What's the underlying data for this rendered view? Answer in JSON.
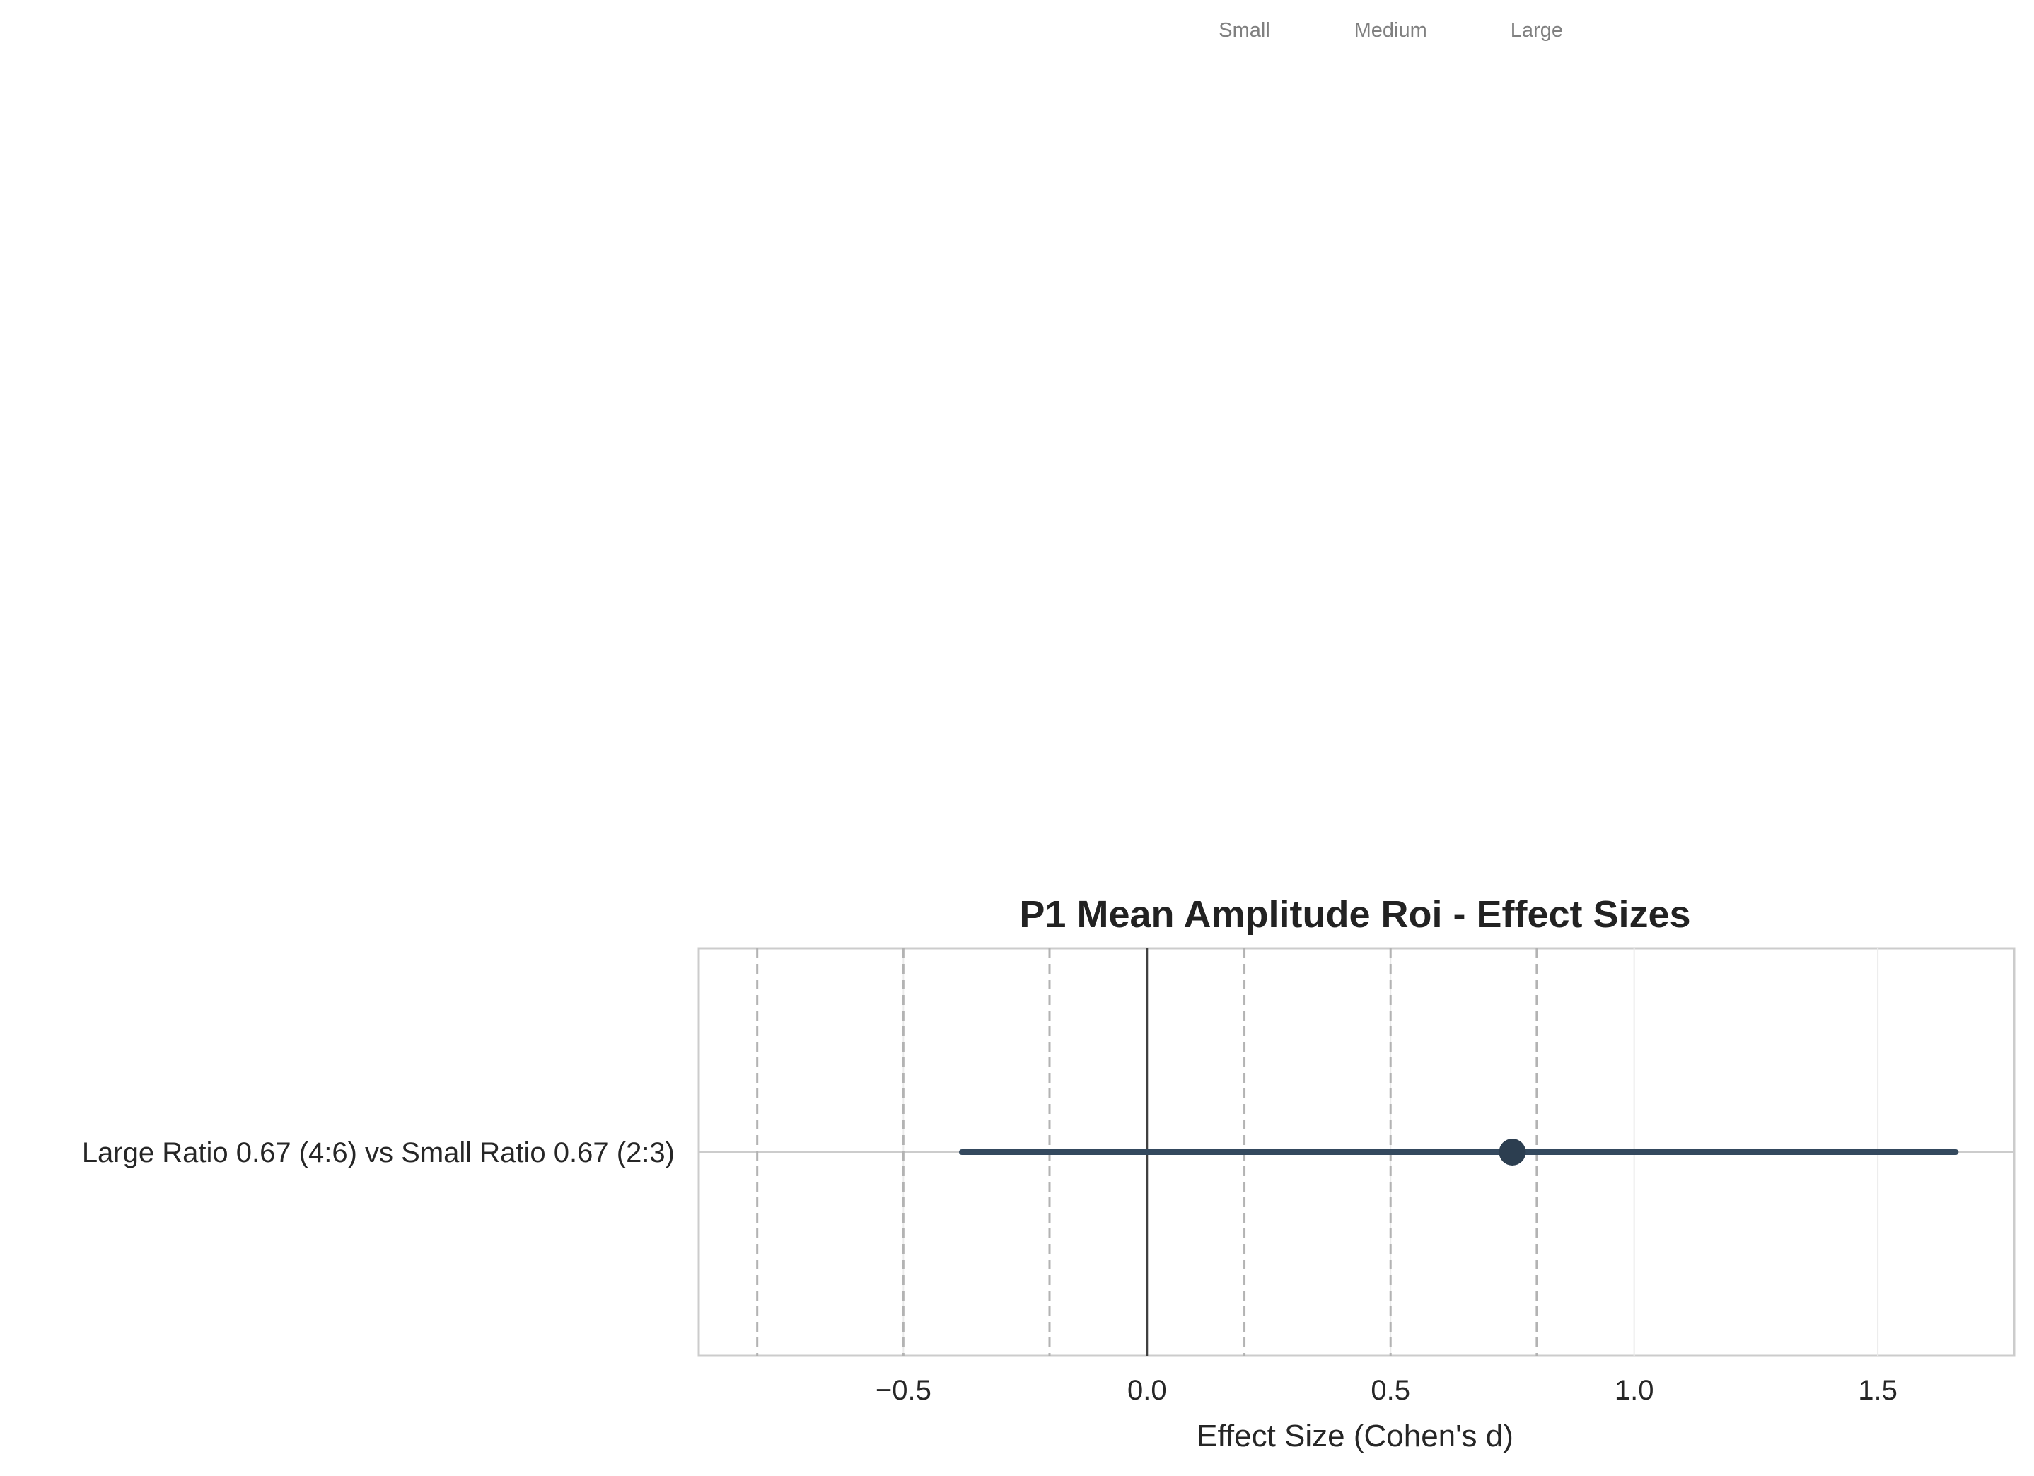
{
  "chart_data": {
    "type": "forest",
    "title": "P1 Mean Amplitude Roi - Effect Sizes",
    "xlabel": "Effect Size (Cohen's d)",
    "xlim": [
      -0.92,
      1.78
    ],
    "x_ticks": [
      -0.5,
      0.0,
      0.5,
      1.0,
      1.5
    ],
    "x_tick_labels": [
      "−0.5",
      "0.0",
      "0.5",
      "1.0",
      "1.5"
    ],
    "grid": true,
    "reference_line": 0.0,
    "threshold_lines": [
      -0.8,
      -0.5,
      -0.2,
      0.2,
      0.5,
      0.8
    ],
    "threshold_labels": [
      {
        "value": 0.2,
        "label": "Small"
      },
      {
        "value": 0.5,
        "label": "Medium"
      },
      {
        "value": 0.8,
        "label": "Large"
      }
    ],
    "rows": [
      {
        "label": "Large Ratio 0.67 (4:6) vs Small Ratio 0.67 (2:3)",
        "estimate": 0.75,
        "ci_low": -0.38,
        "ci_high": 1.66
      }
    ],
    "colors": {
      "point": "#2c3e50",
      "ci": "#34495e",
      "threshold": "#b3b3b3",
      "reference": "#404040"
    }
  }
}
